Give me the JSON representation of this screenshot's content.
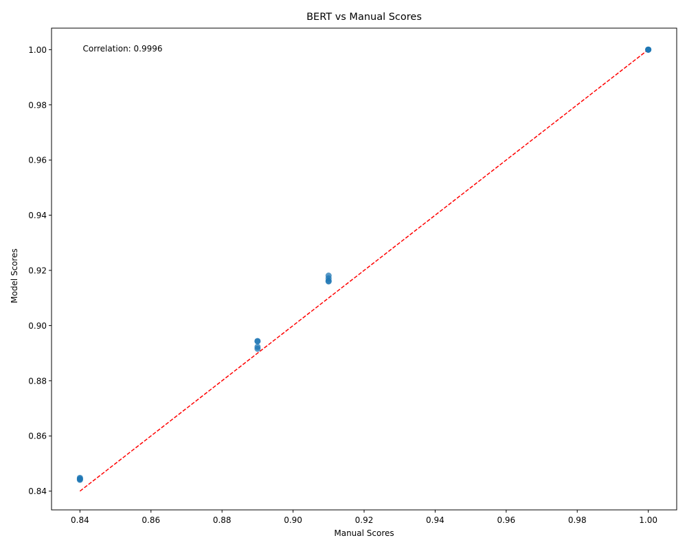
{
  "chart_data": {
    "type": "scatter",
    "title": "BERT vs Manual Scores",
    "xlabel": "Manual Scores",
    "ylabel": "Model Scores",
    "xlim": [
      0.832,
      1.008
    ],
    "ylim": [
      0.8332,
      1.0078
    ],
    "xticks": [
      0.84,
      0.86,
      0.88,
      0.9,
      0.92,
      0.94,
      0.96,
      0.98,
      1.0
    ],
    "yticks": [
      0.84,
      0.86,
      0.88,
      0.9,
      0.92,
      0.94,
      0.96,
      0.98,
      1.0
    ],
    "xtick_labels": [
      "0.84",
      "0.86",
      "0.88",
      "0.90",
      "0.92",
      "0.94",
      "0.96",
      "0.98",
      "1.00"
    ],
    "ytick_labels": [
      "0.84",
      "0.86",
      "0.88",
      "0.90",
      "0.92",
      "0.94",
      "0.96",
      "0.98",
      "1.00"
    ],
    "grid": false,
    "points": {
      "x": [
        0.84,
        0.84,
        0.84,
        0.84,
        0.89,
        0.89,
        0.89,
        0.89,
        0.91,
        0.91,
        0.91,
        0.91,
        1.0,
        1.0,
        1.0,
        1.0
      ],
      "y": [
        0.8441,
        0.8445,
        0.8448,
        0.8443,
        0.8916,
        0.8923,
        0.8943,
        0.8944,
        0.916,
        0.9162,
        0.9171,
        0.9181,
        1.0,
        1.0,
        1.0,
        1.0
      ]
    },
    "reference_line": {
      "x": [
        0.84,
        1.0
      ],
      "y": [
        0.84,
        1.0
      ],
      "style": "dashed",
      "color": "#ff0000"
    },
    "annotation": "Correlation: 0.9996",
    "point_color": "#1f77b4"
  }
}
